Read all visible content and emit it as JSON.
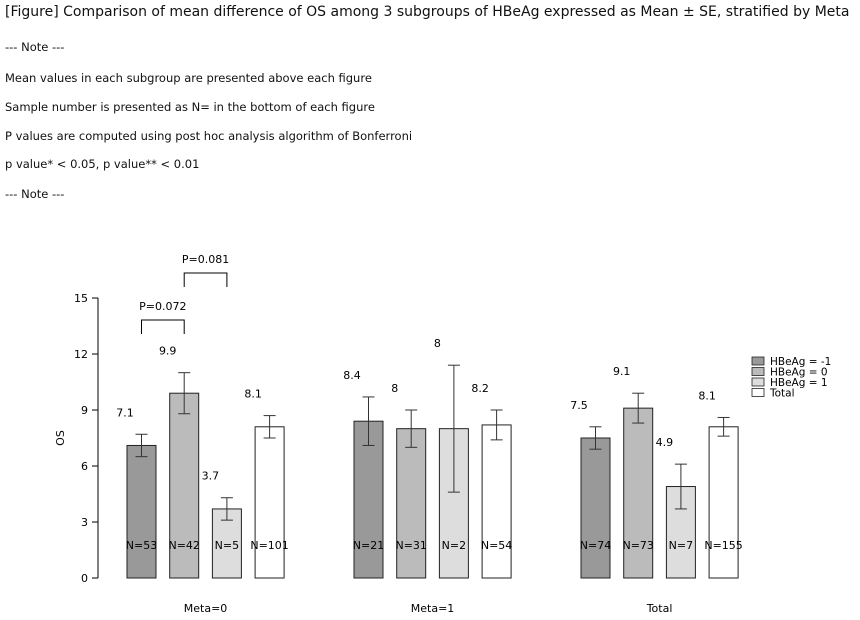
{
  "header": {
    "title": "[Figure] Comparison of mean difference of OS among 3 subgroups of HBeAg expressed as Mean ± SE, stratified by Meta",
    "notes": [
      "--- Note ---",
      "Mean values in each subgroup are presented above each figure",
      "Sample number is presented as N= in the bottom of each figure",
      "P values are computed using post hoc analysis algorithm of Bonferroni",
      "p value* < 0.05, p value** < 0.01",
      "--- Note ---"
    ]
  },
  "chart_data": {
    "type": "bar",
    "ylabel": "OS",
    "xlabel": "",
    "ylim": [
      0,
      15
    ],
    "yticks": [
      "0",
      "3",
      "6",
      "9",
      "12",
      "15"
    ],
    "categories": [
      "Meta=0",
      "Meta=1",
      "Total"
    ],
    "colors": [
      "#999999",
      "#bbbbbb",
      "#dddddd",
      "#ffffff"
    ],
    "legend_position": "right",
    "series": [
      {
        "name": "HBeAg = -1",
        "values": [
          7.1,
          8.4,
          7.5
        ],
        "se": [
          0.6,
          1.3,
          0.6
        ],
        "labels": [
          "7.1",
          "8.4",
          "7.5"
        ],
        "n": [
          "N=53",
          "N=21",
          "N=74"
        ]
      },
      {
        "name": "HBeAg = 0",
        "values": [
          9.9,
          8.0,
          9.1
        ],
        "se": [
          1.1,
          1.0,
          0.8
        ],
        "labels": [
          "9.9",
          "8",
          "9.1"
        ],
        "n": [
          "N=42",
          "N=31",
          "N=73"
        ]
      },
      {
        "name": "HBeAg = 1",
        "values": [
          3.7,
          8.0,
          4.9
        ],
        "se": [
          0.6,
          3.4,
          1.2
        ],
        "labels": [
          "3.7",
          "8",
          "4.9"
        ],
        "n": [
          "N=5",
          "N=2",
          "N=7"
        ]
      },
      {
        "name": "Total",
        "values": [
          8.1,
          8.2,
          8.1
        ],
        "se": [
          0.6,
          0.8,
          0.5
        ],
        "labels": [
          "8.1",
          "8.2",
          "8.1"
        ],
        "n": [
          "N=101",
          "N=54",
          "N=155"
        ]
      }
    ],
    "annotations": [
      {
        "text": "P=0.072",
        "category": 0,
        "from_series": 0,
        "to_series": 1
      },
      {
        "text": "P=0.081",
        "category": 0,
        "from_series": 1,
        "to_series": 2
      }
    ]
  }
}
